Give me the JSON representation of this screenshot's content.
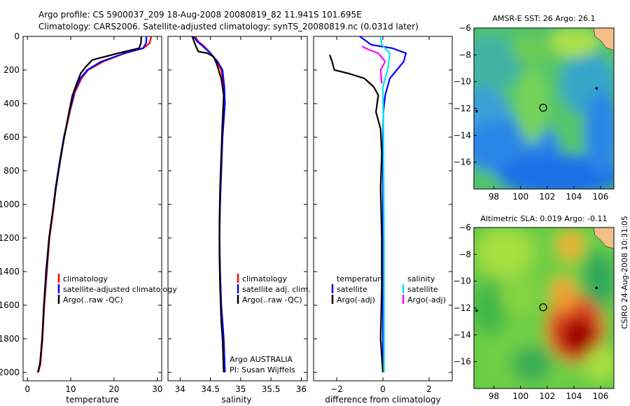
{
  "title": {
    "line1": "Argo profile: CS 5900037_209 18-Aug-2008 20080819_82 11.941S 101.695E",
    "line2": "Climatology: CARS2006. Satellite-adjusted climatology: synTS_20080819.nc (0.031d later)"
  },
  "side_label": "CSIRO 24-Aug-2008 10:31:05",
  "colors": {
    "red": "#ff0000",
    "blue": "#0000ff",
    "black": "#000000",
    "cyan": "#00e5ee",
    "magenta": "#ff00ff"
  },
  "chart_data": [
    {
      "type": "line",
      "name": "temperature-profile",
      "xlabel": "temperature",
      "ylabel": "",
      "xlim": [
        -1,
        31
      ],
      "ylim": [
        2050,
        0
      ],
      "x_ticks": [
        0,
        10,
        20,
        30
      ],
      "y_ticks": [
        0,
        200,
        400,
        600,
        800,
        1000,
        1200,
        1400,
        1600,
        1800,
        2000
      ],
      "series": [
        {
          "name": "climatology",
          "color": "red",
          "x": [
            28.6,
            28.2,
            26.8,
            22.5,
            17.5,
            14.0,
            12.5,
            11.0,
            9.8,
            8.5,
            7.5,
            6.6,
            5.9,
            5.1,
            4.5,
            3.9,
            3.5,
            3.0,
            2.5
          ],
          "y": [
            0,
            40,
            70,
            100,
            150,
            200,
            250,
            330,
            450,
            600,
            750,
            900,
            1050,
            1200,
            1400,
            1600,
            1800,
            1950,
            2000
          ]
        },
        {
          "name": "satellite-adjusted climatology",
          "color": "blue",
          "x": [
            27.5,
            27.4,
            26.7,
            22.5,
            17.0,
            13.8,
            12.2,
            10.8,
            9.7,
            8.4,
            7.4,
            6.5,
            5.8,
            5.0,
            4.4,
            3.8,
            3.4,
            2.9,
            2.4
          ],
          "y": [
            0,
            40,
            70,
            100,
            150,
            200,
            250,
            330,
            450,
            600,
            750,
            900,
            1050,
            1200,
            1400,
            1600,
            1800,
            1950,
            2000
          ]
        },
        {
          "name": "Argo(..raw -QC)",
          "color": "black",
          "x": [
            26.3,
            26.2,
            25.8,
            21.0,
            15.0,
            13.5,
            12.3,
            11.4,
            10.4,
            9.6,
            8.5,
            7.5,
            6.6,
            5.8,
            5.0,
            4.3,
            3.8,
            3.4,
            2.9,
            2.4
          ],
          "y": [
            0,
            40,
            70,
            100,
            140,
            180,
            220,
            280,
            350,
            450,
            600,
            750,
            900,
            1050,
            1200,
            1400,
            1600,
            1800,
            1950,
            2000
          ]
        }
      ],
      "legend": [
        "climatology",
        "satellite-adjusted climatology",
        "Argo(..raw -QC)"
      ]
    },
    {
      "type": "line",
      "name": "salinity-profile",
      "xlabel": "salinity",
      "xlim": [
        33.8,
        36.1
      ],
      "ylim": [
        2050,
        0
      ],
      "x_ticks": [
        34,
        34.5,
        35,
        35.5,
        36
      ],
      "x_tick_labels": [
        "34",
        "34.5",
        "35",
        "35.5",
        "36"
      ],
      "series": [
        {
          "name": "climatology",
          "color": "red",
          "x": [
            34.25,
            34.3,
            34.4,
            34.5,
            34.6,
            34.68,
            34.72,
            34.74,
            34.72,
            34.7,
            34.68,
            34.66,
            34.65,
            34.66,
            34.68,
            34.7,
            34.72,
            34.73,
            34.74
          ],
          "y": [
            0,
            30,
            60,
            100,
            150,
            200,
            300,
            400,
            500,
            600,
            800,
            1000,
            1200,
            1400,
            1600,
            1700,
            1800,
            1900,
            2000
          ]
        },
        {
          "name": "satellite adj. clim.",
          "color": "blue",
          "x": [
            34.22,
            34.28,
            34.38,
            34.5,
            34.62,
            34.7,
            34.73,
            34.74,
            34.72,
            34.7,
            34.68,
            34.66,
            34.65,
            34.66,
            34.68,
            34.7,
            34.72,
            34.73,
            34.74
          ],
          "y": [
            0,
            30,
            60,
            100,
            150,
            200,
            300,
            400,
            500,
            600,
            800,
            1000,
            1200,
            1400,
            1600,
            1700,
            1800,
            1900,
            2000
          ]
        },
        {
          "name": "Argo(..raw -QC)",
          "color": "black",
          "x": [
            34.2,
            34.25,
            34.3,
            34.45,
            34.55,
            34.6,
            34.68,
            34.72,
            34.7,
            34.68,
            34.66,
            34.65,
            34.65,
            34.66,
            34.68,
            34.7,
            34.71,
            34.72
          ],
          "y": [
            0,
            50,
            90,
            100,
            120,
            160,
            250,
            350,
            500,
            700,
            900,
            1100,
            1300,
            1500,
            1700,
            1800,
            1900,
            2000
          ]
        }
      ],
      "legend": [
        "climatology",
        "satellite adj. clim.",
        "Argo(..raw -QC)"
      ],
      "annotation": [
        "Argo AUSTRALIA",
        "PI: Susan Wijffels"
      ]
    },
    {
      "type": "line",
      "name": "difference-profile",
      "xlabel": "difference from climatology",
      "xlim": [
        -3,
        3
      ],
      "ylim": [
        2050,
        0
      ],
      "x_ticks": [
        -2,
        0,
        2
      ],
      "series": [
        {
          "name": "temperature satellite",
          "color": "blue",
          "x": [
            -1.0,
            -0.5,
            0.4,
            1.0,
            0.9,
            0.6,
            0.3,
            0.1,
            0.02,
            0.0,
            0.0,
            0.0,
            0.0,
            0.0
          ],
          "y": [
            0,
            50,
            70,
            100,
            150,
            200,
            250,
            350,
            450,
            600,
            800,
            1200,
            1600,
            2000
          ]
        },
        {
          "name": "temperature Argo(-adj)",
          "color": "black",
          "x": [
            -2.3,
            -2.2,
            -2.1,
            -1.5,
            -0.8,
            -0.4,
            -0.2,
            -0.3,
            -0.1,
            -0.05,
            -0.1,
            -0.05,
            -0.05,
            -0.1,
            0.0
          ],
          "y": [
            110,
            150,
            200,
            220,
            250,
            300,
            350,
            450,
            550,
            700,
            900,
            1200,
            1500,
            1800,
            2000
          ]
        },
        {
          "name": "salinity satellite",
          "color": "cyan",
          "x": [
            -0.1,
            -0.05,
            0.3,
            0.2,
            0.0,
            0.02,
            0.03,
            0.05,
            0.05,
            0.05
          ],
          "y": [
            0,
            50,
            100,
            200,
            300,
            500,
            800,
            1200,
            1600,
            2000
          ]
        },
        {
          "name": "salinity Argo(-adj)",
          "color": "magenta",
          "x": [
            -0.9,
            -0.6,
            -0.2,
            0.1,
            -0.1,
            -0.05
          ],
          "y": [
            60,
            80,
            100,
            150,
            200,
            280
          ]
        }
      ],
      "legend_headers": [
        "temperature",
        "salinity"
      ],
      "legend": [
        "satellite",
        "Argo(-adj)",
        "satellite",
        "Argo(-adj)"
      ]
    },
    {
      "type": "heatmap",
      "name": "sst-map",
      "title": "AMSR-E SST: 26 Argo: 26.1",
      "xlim": [
        96.5,
        107
      ],
      "ylim": [
        -18,
        -6
      ],
      "x_ticks": [
        98,
        100,
        102,
        104,
        106
      ],
      "y_ticks": [
        -6,
        -8,
        -10,
        -12,
        -14,
        -16
      ],
      "argo_location": [
        101.695,
        -11.941
      ],
      "markers": [
        [
          96.7,
          -12.2
        ],
        [
          105.7,
          -10.5
        ]
      ]
    },
    {
      "type": "heatmap",
      "name": "sla-map",
      "title": "Altimetric SLA: 0.019 Argo: -0.11",
      "xlim": [
        96.5,
        107
      ],
      "ylim": [
        -18,
        -6
      ],
      "x_ticks": [
        98,
        100,
        102,
        104,
        106
      ],
      "y_ticks": [
        -6,
        -8,
        -10,
        -12,
        -14,
        -16
      ],
      "argo_location": [
        101.695,
        -11.941
      ],
      "markers": [
        [
          96.7,
          -12.2
        ],
        [
          105.7,
          -10.5
        ]
      ]
    }
  ]
}
